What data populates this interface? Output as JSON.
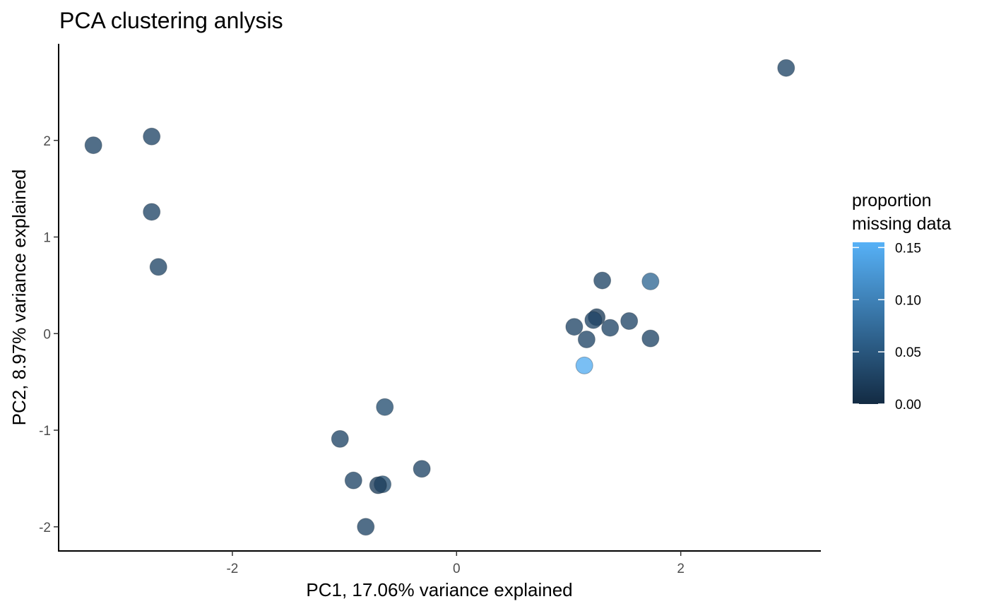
{
  "chart_data": {
    "type": "scatter",
    "title": "PCA clustering anlysis",
    "xlabel": "PC1, 17.06% variance explained",
    "ylabel": "PC2, 8.97% variance explained",
    "xlim": [
      -3.55,
      3.25
    ],
    "ylim": [
      -2.25,
      3.0
    ],
    "x_ticks": [
      -2,
      0,
      2
    ],
    "x_tick_labels": [
      "-2",
      "0",
      "2"
    ],
    "y_ticks": [
      -2,
      -1,
      0,
      1,
      2
    ],
    "y_tick_labels": [
      "-2",
      "-1",
      "0",
      "1",
      "2"
    ],
    "grid": false,
    "legend_position": "right",
    "color_scale": {
      "title": [
        "proportion",
        "missing data"
      ],
      "min": 0.0,
      "max": 0.155,
      "low_color": "#132b43",
      "high_color": "#56b1f7",
      "breaks": [
        0.0,
        0.05,
        0.1,
        0.15
      ],
      "break_labels": [
        "0.00",
        "0.05",
        "0.10",
        "0.15"
      ]
    },
    "points": [
      {
        "x": 2.94,
        "y": 2.75,
        "value": 0.03
      },
      {
        "x": -3.24,
        "y": 1.95,
        "value": 0.03
      },
      {
        "x": -2.72,
        "y": 2.04,
        "value": 0.03
      },
      {
        "x": -2.72,
        "y": 1.26,
        "value": 0.03
      },
      {
        "x": -2.66,
        "y": 0.69,
        "value": 0.03
      },
      {
        "x": 1.3,
        "y": 0.55,
        "value": 0.03
      },
      {
        "x": 1.73,
        "y": 0.54,
        "value": 0.07
      },
      {
        "x": 1.25,
        "y": 0.17,
        "value": 0.02
      },
      {
        "x": 1.22,
        "y": 0.14,
        "value": 0.03
      },
      {
        "x": 1.54,
        "y": 0.13,
        "value": 0.03
      },
      {
        "x": 1.05,
        "y": 0.07,
        "value": 0.03
      },
      {
        "x": 1.37,
        "y": 0.06,
        "value": 0.03
      },
      {
        "x": 1.16,
        "y": -0.06,
        "value": 0.03
      },
      {
        "x": 1.73,
        "y": -0.05,
        "value": 0.03
      },
      {
        "x": 1.14,
        "y": -0.33,
        "value": 0.15
      },
      {
        "x": -0.64,
        "y": -0.76,
        "value": 0.04
      },
      {
        "x": -1.04,
        "y": -1.09,
        "value": 0.03
      },
      {
        "x": -0.31,
        "y": -1.4,
        "value": 0.03
      },
      {
        "x": -0.92,
        "y": -1.52,
        "value": 0.03
      },
      {
        "x": -0.66,
        "y": -1.56,
        "value": 0.04
      },
      {
        "x": -0.7,
        "y": -1.57,
        "value": 0.02
      },
      {
        "x": -0.81,
        "y": -2.0,
        "value": 0.03
      }
    ]
  }
}
